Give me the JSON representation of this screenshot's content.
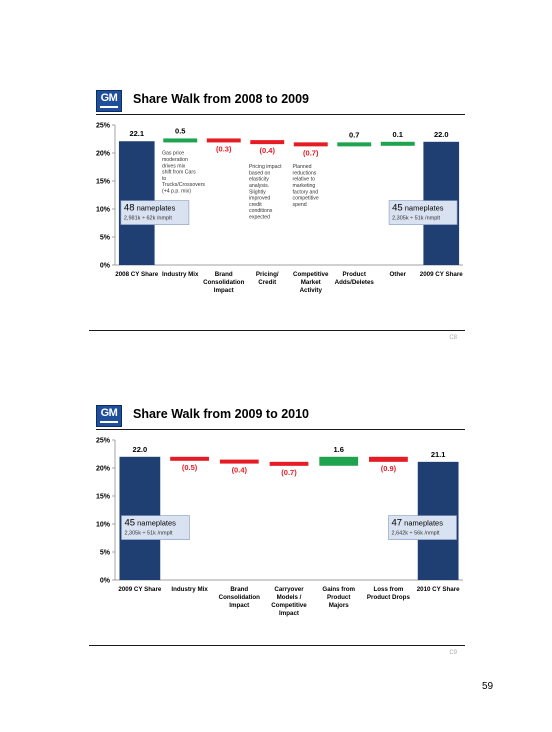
{
  "slides": [
    {
      "title": "Share Walk from 2008 to 2009",
      "logo_text": "GM",
      "footer_code": "C8",
      "chart_data": {
        "type": "bar",
        "subtype": "waterfall",
        "title": "Share Walk from 2008 to 2009",
        "ylim": [
          0,
          25
        ],
        "yticks": [
          "0%",
          "5%",
          "10%",
          "15%",
          "20%",
          "25%"
        ],
        "categories": [
          "2008 CY Share",
          "Industry Mix",
          "Brand Consolidation Impact",
          "Pricing/ Credit",
          "Competitive Market Activity",
          "Product Adds/Deletes",
          "Other",
          "2009 CY Share"
        ],
        "values": [
          22.1,
          0.5,
          -0.3,
          -0.4,
          -0.7,
          0.7,
          0.1,
          22.0
        ],
        "value_labels": [
          "22.1",
          "0.5",
          "(0.3)",
          "(0.4)",
          "(0.7)",
          "0.7",
          "0.1",
          "22.0"
        ],
        "annotations": [
          "Gas price moderation drives mix shift from Cars to Trucks/Crossovers (+4 p.p. mix)",
          "Pricing impact based on elasticity analysis. Slightly improved credit conditions expected",
          "Planned reductions relative to marketing factory and competitive spend"
        ],
        "boxes": [
          {
            "title": "48 nameplates",
            "detail": "2,981k ÷ 62k /nmplt"
          },
          {
            "title": "45 nameplates",
            "detail": "2,305k ÷ 51k /nmplt"
          }
        ],
        "colors": {
          "total": "#1f3f73",
          "positive": "#1fa34f",
          "negative": "#e51c23"
        }
      }
    },
    {
      "title": "Share Walk from 2009 to 2010",
      "logo_text": "GM",
      "footer_code": "C9",
      "chart_data": {
        "type": "bar",
        "subtype": "waterfall",
        "title": "Share Walk from 2009 to 2010",
        "ylim": [
          0,
          25
        ],
        "yticks": [
          "0%",
          "5%",
          "10%",
          "15%",
          "20%",
          "25%"
        ],
        "categories": [
          "2009 CY Share",
          "Industry Mix",
          "Brand Consolidation Impact",
          "Carryover Models / Competitive Impact",
          "Gains from Product Majors",
          "Loss from Product Drops",
          "2010 CY Share"
        ],
        "values": [
          22.0,
          -0.5,
          -0.4,
          -0.7,
          1.6,
          -0.9,
          21.1
        ],
        "value_labels": [
          "22.0",
          "(0.5)",
          "(0.4)",
          "(0.7)",
          "1.6",
          "(0.9)",
          "21.1"
        ],
        "boxes": [
          {
            "title": "45 nameplates",
            "detail": "2,305k ÷ 51k /nmplt"
          },
          {
            "title": "47 nameplates",
            "detail": "2,642k ÷ 56k /nmplt"
          }
        ],
        "colors": {
          "total": "#1f3f73",
          "positive": "#1fa34f",
          "negative": "#e51c23"
        }
      }
    }
  ],
  "page_number": "59"
}
